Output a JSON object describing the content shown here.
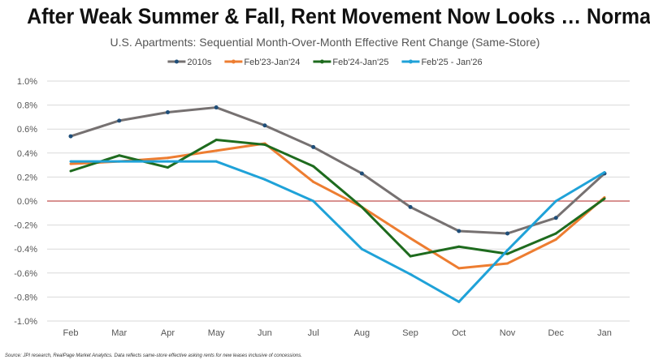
{
  "chart_data": {
    "type": "line",
    "title": "After Weak Summer & Fall, Rent Movement Now Looks … Normal?",
    "subtitle": "U.S. Apartments: Sequential Month-Over-Month Effective Rent Change (Same-Store)",
    "source": "Source: JPI research, RealPage Market Analytics. Data reflects same-store effective asking rents for new leases inclusive of concessions.",
    "categories": [
      "Feb",
      "Mar",
      "Apr",
      "May",
      "Jun",
      "Jul",
      "Aug",
      "Sep",
      "Oct",
      "Nov",
      "Dec",
      "Jan"
    ],
    "yticks": [
      "1.0%",
      "0.8%",
      "0.6%",
      "0.4%",
      "0.2%",
      "0.0%",
      "-0.2%",
      "-0.4%",
      "-0.6%",
      "-0.8%",
      "-1.0%"
    ],
    "ylim": [
      -1.0,
      1.0
    ],
    "yunit": "%",
    "grid": true,
    "zero_line_color": "#c0504d",
    "legend_position": "top",
    "series": [
      {
        "name": "2010s",
        "color": "#767171",
        "markers": true,
        "values": [
          0.54,
          0.67,
          0.74,
          0.78,
          0.63,
          0.45,
          0.23,
          -0.05,
          -0.25,
          -0.27,
          -0.14,
          0.23
        ]
      },
      {
        "name": "Feb'23-Jan'24",
        "color": "#ed7d31",
        "markers": false,
        "values": [
          0.31,
          0.33,
          0.36,
          0.42,
          0.48,
          0.16,
          -0.05,
          -0.31,
          -0.56,
          -0.52,
          -0.32,
          0.03
        ]
      },
      {
        "name": "Feb'24-Jan'25",
        "color": "#1e6b1e",
        "markers": false,
        "values": [
          0.25,
          0.38,
          0.28,
          0.51,
          0.47,
          0.29,
          -0.05,
          -0.46,
          -0.38,
          -0.44,
          -0.27,
          0.02
        ]
      },
      {
        "name": "Feb'25 - Jan'26",
        "color": "#1fa2d8",
        "markers": false,
        "values": [
          0.33,
          0.33,
          0.33,
          0.33,
          0.18,
          0.0,
          -0.4,
          -0.61,
          -0.84,
          -0.41,
          0.0,
          0.24
        ]
      }
    ]
  }
}
